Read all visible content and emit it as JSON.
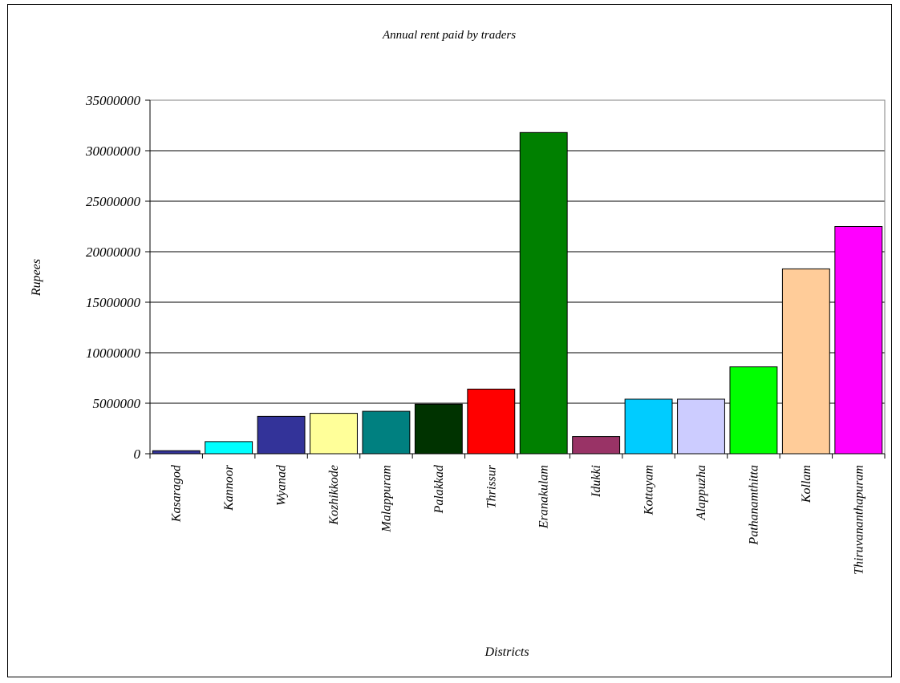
{
  "chart_data": {
    "type": "bar",
    "title": "Annual rent paid by traders",
    "xlabel": "Districts",
    "ylabel": "Rupees",
    "ylim": [
      0,
      35000000
    ],
    "yticks": [
      0,
      5000000,
      10000000,
      15000000,
      20000000,
      25000000,
      30000000,
      35000000
    ],
    "ytick_labels": [
      "0",
      "5000000",
      "10000000",
      "15000000",
      "20000000",
      "25000000",
      "30000000",
      "35000000"
    ],
    "grid": "horizontal",
    "legend": "none",
    "categories": [
      "Kasaragod",
      "Kannoor",
      "Wyanad",
      "Kozhikkode",
      "Malappuram",
      "Palakkad",
      "Thrissur",
      "Eranakulam",
      "Idukki",
      "Kottayam",
      "Alappuzha",
      "Pathanamthitta",
      "Kollam",
      "Thiruvananthapuram"
    ],
    "values": [
      300000,
      1200000,
      3700000,
      4000000,
      4200000,
      4900000,
      6400000,
      31800000,
      1700000,
      5400000,
      5400000,
      8600000,
      18300000,
      22500000
    ],
    "colors": [
      "#333399",
      "#00FFFF",
      "#333399",
      "#FFFF99",
      "#008080",
      "#003300",
      "#FF0000",
      "#008000",
      "#993366",
      "#00CCFF",
      "#CCCCFF",
      "#00FF00",
      "#FFCC99",
      "#FF00FF"
    ]
  }
}
